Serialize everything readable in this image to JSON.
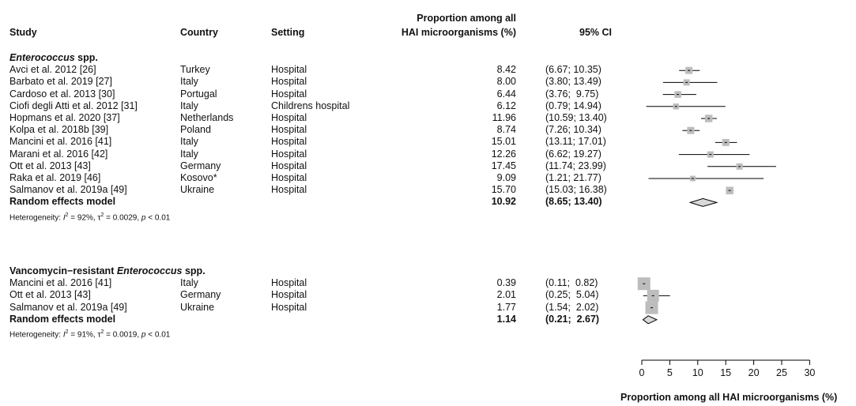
{
  "headers": {
    "study": "Study",
    "country": "Country",
    "setting": "Setting",
    "proportion_line1": "Proportion among all",
    "proportion_line2": "HAI microorganisms (%)",
    "ci": "95% CI"
  },
  "groups": [
    {
      "title_italic": "Enterococcus",
      "title_rest": " spp.",
      "title_prefix": "",
      "studies": [
        {
          "study": "Avci et al. 2012 [26]",
          "country": "Turkey",
          "setting": "Hospital",
          "proportion": "8.42",
          "ci": "(6.67; 10.35)",
          "est": 8.42,
          "lo": 6.67,
          "hi": 10.35,
          "weight": 0.9
        },
        {
          "study": "Barbato et al. 2019 [27]",
          "country": "Italy",
          "setting": "Hospital",
          "proportion": "8.00",
          "ci": "(3.80; 13.49)",
          "est": 8.0,
          "lo": 3.8,
          "hi": 13.49,
          "weight": 0.8
        },
        {
          "study": "Cardoso et al. 2013 [30]",
          "country": "Portugal",
          "setting": "Hospital",
          "proportion": "6.44",
          "ci": "(3.76;  9.75)",
          "est": 6.44,
          "lo": 3.76,
          "hi": 9.75,
          "weight": 0.85
        },
        {
          "study": "Ciofi degli Atti et al. 2012 [31]",
          "country": "Italy",
          "setting": "Childrens hospital",
          "proportion": "6.12",
          "ci": "(0.79; 14.94)",
          "est": 6.12,
          "lo": 0.79,
          "hi": 14.94,
          "weight": 0.75
        },
        {
          "study": "Hopmans et al. 2020 [37]",
          "country": "Netherlands",
          "setting": "Hospital",
          "proportion": "11.96",
          "ci": "(10.59; 13.40)",
          "est": 11.96,
          "lo": 10.59,
          "hi": 13.4,
          "weight": 0.95
        },
        {
          "study": "Kolpa et al. 2018b [39]",
          "country": "Poland",
          "setting": "Hospital",
          "proportion": "8.74",
          "ci": "(7.26; 10.34)",
          "est": 8.74,
          "lo": 7.26,
          "hi": 10.34,
          "weight": 0.9
        },
        {
          "study": "Mancini et al. 2016 [41]",
          "country": "Italy",
          "setting": "Hospital",
          "proportion": "15.01",
          "ci": "(13.11; 17.01)",
          "est": 15.01,
          "lo": 13.11,
          "hi": 17.01,
          "weight": 0.9
        },
        {
          "study": "Marani et al. 2016 [42]",
          "country": "Italy",
          "setting": "Hospital",
          "proportion": "12.26",
          "ci": "(6.62; 19.27)",
          "est": 12.26,
          "lo": 6.62,
          "hi": 19.27,
          "weight": 0.8
        },
        {
          "study": "Ott et al. 2013 [43]",
          "country": "Germany",
          "setting": "Hospital",
          "proportion": "17.45",
          "ci": "(11.74; 23.99)",
          "est": 17.45,
          "lo": 11.74,
          "hi": 23.99,
          "weight": 0.8
        },
        {
          "study": "Raka et al. 2019 [46]",
          "country": "Kosovo*",
          "setting": "Hospital",
          "proportion": "9.09",
          "ci": "(1.21; 21.77)",
          "est": 9.09,
          "lo": 1.21,
          "hi": 21.77,
          "weight": 0.7
        },
        {
          "study": "Salmanov et al. 2019a [49]",
          "country": "Ukraine",
          "setting": "Hospital",
          "proportion": "15.70",
          "ci": "(15.03; 16.38)",
          "est": 15.7,
          "lo": 15.03,
          "hi": 16.38,
          "weight": 0.95
        }
      ],
      "pooled": {
        "label": "Random effects model",
        "proportion": "10.92",
        "ci": "(8.65; 13.40)",
        "est": 10.92,
        "lo": 8.65,
        "hi": 13.4
      },
      "heterogeneity": {
        "prefix": "Heterogeneity: ",
        "i2": "I",
        "i2_value": " = 92%, ",
        "tau": "τ",
        "tau_value": " = 0.0029, ",
        "p": "p",
        "p_value": " < 0.01"
      }
    },
    {
      "title_prefix": "Vancomycin−resistant ",
      "title_italic": "Enterococcus",
      "title_rest": " spp.",
      "studies": [
        {
          "study": "Mancini et al. 2016 [41]",
          "country": "Italy",
          "setting": "Hospital",
          "proportion": "0.39",
          "ci": "(0.11;  0.82)",
          "est": 0.39,
          "lo": 0.11,
          "hi": 0.82,
          "weight": 1.6
        },
        {
          "study": "Ott et al. 2013 [43]",
          "country": "Germany",
          "setting": "Hospital",
          "proportion": "2.01",
          "ci": "(0.25;  5.04)",
          "est": 2.01,
          "lo": 0.25,
          "hi": 5.04,
          "weight": 1.5
        },
        {
          "study": "Salmanov et al. 2019a [49]",
          "country": "Ukraine",
          "setting": "Hospital",
          "proportion": "1.77",
          "ci": "(1.54;  2.02)",
          "est": 1.77,
          "lo": 1.54,
          "hi": 2.02,
          "weight": 1.6
        }
      ],
      "pooled": {
        "label": "Random effects model",
        "proportion": "1.14",
        "ci": "(0.21;  2.67)",
        "est": 1.14,
        "lo": 0.21,
        "hi": 2.67
      },
      "heterogeneity": {
        "prefix": "Heterogeneity: ",
        "i2": "I",
        "i2_value": " = 91%, ",
        "tau": "τ",
        "tau_value": " = 0.0019, ",
        "p": "p",
        "p_value": " < 0.01"
      }
    }
  ],
  "axis": {
    "ticks": [
      0,
      5,
      10,
      15,
      20,
      25,
      30
    ],
    "tick_labels": [
      "0",
      "5",
      "10",
      "15",
      "20",
      "25",
      "30"
    ],
    "label": "Proportion among all HAI microorganisms (%)"
  },
  "chart_data": {
    "type": "forest",
    "xlabel": "Proportion among all HAI microorganisms (%)",
    "xlim": [
      0,
      30
    ],
    "groups": [
      {
        "name": "Enterococcus spp.",
        "studies": [
          {
            "label": "Avci et al. 2012 [26]",
            "estimate": 8.42,
            "ci_low": 6.67,
            "ci_high": 10.35
          },
          {
            "label": "Barbato et al. 2019 [27]",
            "estimate": 8.0,
            "ci_low": 3.8,
            "ci_high": 13.49
          },
          {
            "label": "Cardoso et al. 2013 [30]",
            "estimate": 6.44,
            "ci_low": 3.76,
            "ci_high": 9.75
          },
          {
            "label": "Ciofi degli Atti et al. 2012 [31]",
            "estimate": 6.12,
            "ci_low": 0.79,
            "ci_high": 14.94
          },
          {
            "label": "Hopmans et al. 2020 [37]",
            "estimate": 11.96,
            "ci_low": 10.59,
            "ci_high": 13.4
          },
          {
            "label": "Kolpa et al. 2018b [39]",
            "estimate": 8.74,
            "ci_low": 7.26,
            "ci_high": 10.34
          },
          {
            "label": "Mancini et al. 2016 [41]",
            "estimate": 15.01,
            "ci_low": 13.11,
            "ci_high": 17.01
          },
          {
            "label": "Marani et al. 2016 [42]",
            "estimate": 12.26,
            "ci_low": 6.62,
            "ci_high": 19.27
          },
          {
            "label": "Ott et al. 2013 [43]",
            "estimate": 17.45,
            "ci_low": 11.74,
            "ci_high": 23.99
          },
          {
            "label": "Raka et al. 2019 [46]",
            "estimate": 9.09,
            "ci_low": 1.21,
            "ci_high": 21.77
          },
          {
            "label": "Salmanov et al. 2019a [49]",
            "estimate": 15.7,
            "ci_low": 15.03,
            "ci_high": 16.38
          }
        ],
        "pooled": {
          "label": "Random effects model",
          "estimate": 10.92,
          "ci_low": 8.65,
          "ci_high": 13.4
        }
      },
      {
        "name": "Vancomycin−resistant Enterococcus spp.",
        "studies": [
          {
            "label": "Mancini et al. 2016 [41]",
            "estimate": 0.39,
            "ci_low": 0.11,
            "ci_high": 0.82
          },
          {
            "label": "Ott et al. 2013 [43]",
            "estimate": 2.01,
            "ci_low": 0.25,
            "ci_high": 5.04
          },
          {
            "label": "Salmanov et al. 2019a [49]",
            "estimate": 1.77,
            "ci_low": 1.54,
            "ci_high": 2.02
          }
        ],
        "pooled": {
          "label": "Random effects model",
          "estimate": 1.14,
          "ci_low": 0.21,
          "ci_high": 2.67
        }
      }
    ]
  }
}
